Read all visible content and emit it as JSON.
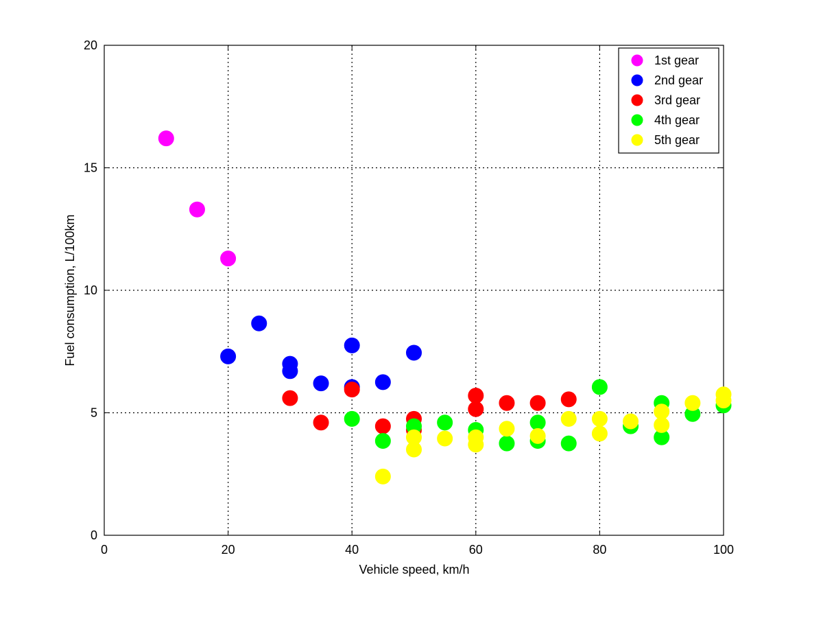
{
  "chart_data": {
    "type": "scatter",
    "xlabel": "Vehicle speed, km/h",
    "ylabel": "Fuel consumption, L/100km",
    "xlim": [
      0,
      100
    ],
    "ylim": [
      0,
      20
    ],
    "xticks": [
      "0",
      "20",
      "40",
      "60",
      "80",
      "100"
    ],
    "yticks": [
      "0",
      "5",
      "10",
      "15",
      "20"
    ],
    "grid": true,
    "legend_position": "top-right",
    "series": [
      {
        "name": "1st gear",
        "color": "#ff00ff",
        "points": [
          [
            10,
            16.2
          ],
          [
            15,
            13.3
          ],
          [
            20,
            11.3
          ]
        ]
      },
      {
        "name": "2nd gear",
        "color": "#0000ff",
        "points": [
          [
            20,
            7.3
          ],
          [
            25,
            8.65
          ],
          [
            30,
            7.0
          ],
          [
            30,
            6.7
          ],
          [
            35,
            6.2
          ],
          [
            40,
            7.75
          ],
          [
            40,
            6.05
          ],
          [
            45,
            6.25
          ],
          [
            50,
            7.45
          ]
        ]
      },
      {
        "name": "3rd gear",
        "color": "#ff0000",
        "points": [
          [
            30,
            5.6
          ],
          [
            35,
            4.6
          ],
          [
            40,
            5.95
          ],
          [
            45,
            4.45
          ],
          [
            50,
            4.75
          ],
          [
            50,
            4.3
          ],
          [
            60,
            5.7
          ],
          [
            60,
            5.15
          ],
          [
            65,
            5.4
          ],
          [
            70,
            5.4
          ],
          [
            75,
            5.55
          ]
        ]
      },
      {
        "name": "4th gear",
        "color": "#00ff00",
        "points": [
          [
            40,
            4.75
          ],
          [
            45,
            3.85
          ],
          [
            50,
            4.45
          ],
          [
            55,
            4.6
          ],
          [
            60,
            4.3
          ],
          [
            65,
            3.75
          ],
          [
            70,
            4.6
          ],
          [
            70,
            3.85
          ],
          [
            75,
            3.75
          ],
          [
            80,
            6.05
          ],
          [
            85,
            4.45
          ],
          [
            90,
            5.4
          ],
          [
            90,
            4.0
          ],
          [
            95,
            4.95
          ],
          [
            100,
            5.3
          ]
        ]
      },
      {
        "name": "5th gear",
        "color": "#ffff00",
        "points": [
          [
            45,
            2.4
          ],
          [
            50,
            4.0
          ],
          [
            50,
            3.5
          ],
          [
            55,
            3.95
          ],
          [
            60,
            4.0
          ],
          [
            60,
            3.7
          ],
          [
            65,
            4.35
          ],
          [
            70,
            4.05
          ],
          [
            75,
            4.75
          ],
          [
            80,
            4.75
          ],
          [
            80,
            4.15
          ],
          [
            85,
            4.65
          ],
          [
            90,
            5.05
          ],
          [
            90,
            4.5
          ],
          [
            95,
            5.4
          ],
          [
            100,
            5.75
          ],
          [
            100,
            5.5
          ]
        ]
      }
    ]
  }
}
